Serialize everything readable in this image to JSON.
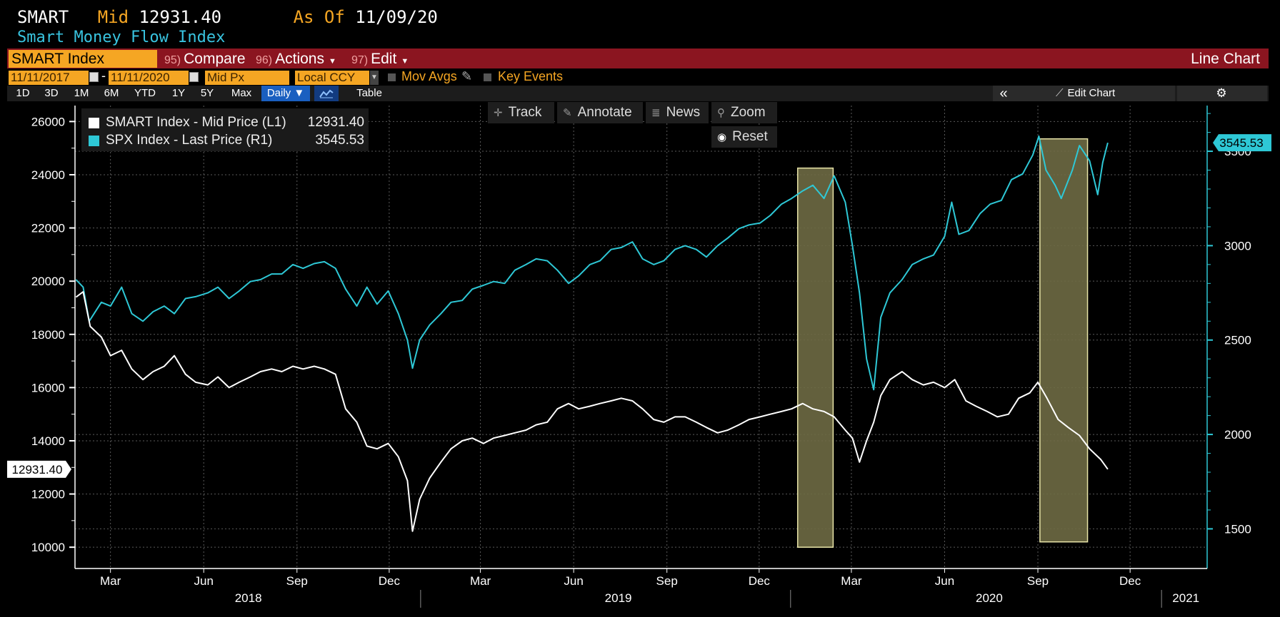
{
  "header": {
    "ticker": "SMART",
    "mid_label": "Mid",
    "mid_value": "12931.40",
    "asof_label": "As Of",
    "asof_value": "11/09/20",
    "subtitle": "Smart Money Flow Index"
  },
  "toolbar": {
    "security": "SMART Index",
    "compare": {
      "num": "95)",
      "label": "Compare"
    },
    "actions": {
      "num": "96)",
      "label": "Actions"
    },
    "edit": {
      "num": "97)",
      "label": "Edit"
    },
    "view": "Line Chart"
  },
  "options": {
    "start_date": "11/11/2017",
    "end_date": "11/11/2020",
    "price_field": "Mid Px",
    "currency": "Local CCY",
    "mov_avgs": "Mov Avgs",
    "key_events": "Key Events"
  },
  "periods": [
    "1D",
    "3D",
    "1M",
    "6M",
    "YTD",
    "1Y",
    "5Y",
    "Max"
  ],
  "frequency": "Daily ▼",
  "table_label": "Table",
  "collapse_icon": "«",
  "edit_chart_label": "Edit Chart",
  "tools": {
    "track": "Track",
    "annotate": "Annotate",
    "news": "News",
    "zoom": "Zoom",
    "reset": "Reset"
  },
  "colors": {
    "smart": "#ffffff",
    "spx": "#2ec8d6",
    "highlight": "#6e6a44",
    "highlight_border": "#e8e4a8",
    "toolbar_red": "#8b1520",
    "field_orange": "#f5a623"
  },
  "chart_data": {
    "type": "line",
    "legend_position": "top-left",
    "grid": true,
    "x_range": [
      "2018-01-25",
      "2021-02-15"
    ],
    "x_month_ticks": [
      "Mar",
      "Jun",
      "Sep",
      "Dec",
      "Mar",
      "Jun",
      "Sep",
      "Dec",
      "Mar",
      "Jun",
      "Sep",
      "Dec"
    ],
    "x_tick_dates": [
      "2018-03-01",
      "2018-06-01",
      "2018-09-01",
      "2018-12-01",
      "2019-03-01",
      "2019-06-01",
      "2019-09-01",
      "2019-12-01",
      "2020-03-01",
      "2020-06-01",
      "2020-09-01",
      "2020-12-01"
    ],
    "x_year_labels": [
      "2018",
      "2019",
      "2020",
      "2021"
    ],
    "x_year_label_dates": [
      "2018-07-15",
      "2019-07-15",
      "2020-07-15",
      "2021-01-25"
    ],
    "x_year_separator_dates": [
      "2019-01-01",
      "2020-01-01",
      "2021-01-01"
    ],
    "y_left": {
      "min": 9200,
      "max": 26600,
      "ticks": [
        10000,
        12000,
        14000,
        16000,
        18000,
        20000,
        22000,
        24000,
        26000
      ]
    },
    "y_right": {
      "min": 1290,
      "max": 3742,
      "ticks": [
        1500,
        2000,
        2500,
        3000,
        3500
      ]
    },
    "left_last_label": "12931.40",
    "right_last_label": "3545.53",
    "highlights": [
      {
        "start": "2020-01-08",
        "end": "2020-02-12",
        "low": 10000,
        "high": 24250
      },
      {
        "start": "2020-09-03",
        "end": "2020-10-20",
        "low": 10200,
        "high": 25350
      }
    ],
    "series": [
      {
        "name": "SMART Index - Mid Price (L1)",
        "last": "12931.40",
        "axis": "left",
        "points": [
          [
            "2018-01-26",
            19400
          ],
          [
            "2018-02-02",
            19600
          ],
          [
            "2018-02-09",
            18300
          ],
          [
            "2018-02-20",
            17900
          ],
          [
            "2018-03-01",
            17200
          ],
          [
            "2018-03-12",
            17400
          ],
          [
            "2018-03-22",
            16700
          ],
          [
            "2018-04-02",
            16300
          ],
          [
            "2018-04-12",
            16600
          ],
          [
            "2018-04-23",
            16800
          ],
          [
            "2018-05-03",
            17200
          ],
          [
            "2018-05-14",
            16500
          ],
          [
            "2018-05-24",
            16200
          ],
          [
            "2018-06-05",
            16100
          ],
          [
            "2018-06-15",
            16400
          ],
          [
            "2018-06-26",
            16000
          ],
          [
            "2018-07-06",
            16200
          ],
          [
            "2018-07-17",
            16400
          ],
          [
            "2018-07-27",
            16600
          ],
          [
            "2018-08-07",
            16700
          ],
          [
            "2018-08-17",
            16600
          ],
          [
            "2018-08-28",
            16800
          ],
          [
            "2018-09-07",
            16700
          ],
          [
            "2018-09-18",
            16800
          ],
          [
            "2018-09-28",
            16700
          ],
          [
            "2018-10-09",
            16500
          ],
          [
            "2018-10-19",
            15200
          ],
          [
            "2018-10-30",
            14700
          ],
          [
            "2018-11-09",
            13800
          ],
          [
            "2018-11-19",
            13700
          ],
          [
            "2018-11-30",
            13900
          ],
          [
            "2018-12-10",
            13400
          ],
          [
            "2018-12-19",
            12500
          ],
          [
            "2018-12-24",
            10600
          ],
          [
            "2018-12-31",
            11800
          ],
          [
            "2019-01-10",
            12600
          ],
          [
            "2019-01-21",
            13200
          ],
          [
            "2019-01-31",
            13700
          ],
          [
            "2019-02-11",
            14000
          ],
          [
            "2019-02-21",
            14100
          ],
          [
            "2019-03-04",
            13900
          ],
          [
            "2019-03-14",
            14100
          ],
          [
            "2019-03-25",
            14200
          ],
          [
            "2019-04-04",
            14300
          ],
          [
            "2019-04-15",
            14400
          ],
          [
            "2019-04-25",
            14600
          ],
          [
            "2019-05-06",
            14700
          ],
          [
            "2019-05-16",
            15200
          ],
          [
            "2019-05-27",
            15400
          ],
          [
            "2019-06-06",
            15200
          ],
          [
            "2019-06-17",
            15300
          ],
          [
            "2019-06-27",
            15400
          ],
          [
            "2019-07-08",
            15500
          ],
          [
            "2019-07-18",
            15600
          ],
          [
            "2019-07-29",
            15500
          ],
          [
            "2019-08-08",
            15200
          ],
          [
            "2019-08-19",
            14800
          ],
          [
            "2019-08-29",
            14700
          ],
          [
            "2019-09-09",
            14900
          ],
          [
            "2019-09-19",
            14900
          ],
          [
            "2019-09-30",
            14700
          ],
          [
            "2019-10-10",
            14500
          ],
          [
            "2019-10-21",
            14300
          ],
          [
            "2019-10-31",
            14400
          ],
          [
            "2019-11-11",
            14600
          ],
          [
            "2019-11-21",
            14800
          ],
          [
            "2019-12-02",
            14900
          ],
          [
            "2019-12-12",
            15000
          ],
          [
            "2019-12-23",
            15100
          ],
          [
            "2020-01-02",
            15200
          ],
          [
            "2020-01-13",
            15400
          ],
          [
            "2020-01-23",
            15200
          ],
          [
            "2020-02-03",
            15100
          ],
          [
            "2020-02-13",
            14900
          ],
          [
            "2020-02-24",
            14400
          ],
          [
            "2020-03-02",
            14100
          ],
          [
            "2020-03-09",
            13200
          ],
          [
            "2020-03-16",
            14000
          ],
          [
            "2020-03-23",
            14700
          ],
          [
            "2020-03-30",
            15700
          ],
          [
            "2020-04-08",
            16300
          ],
          [
            "2020-04-20",
            16600
          ],
          [
            "2020-04-30",
            16300
          ],
          [
            "2020-05-11",
            16100
          ],
          [
            "2020-05-21",
            16200
          ],
          [
            "2020-06-01",
            16000
          ],
          [
            "2020-06-11",
            16300
          ],
          [
            "2020-06-22",
            15500
          ],
          [
            "2020-07-02",
            15300
          ],
          [
            "2020-07-13",
            15100
          ],
          [
            "2020-07-23",
            14900
          ],
          [
            "2020-08-03",
            15000
          ],
          [
            "2020-08-13",
            15600
          ],
          [
            "2020-08-24",
            15800
          ],
          [
            "2020-09-01",
            16200
          ],
          [
            "2020-09-10",
            15600
          ],
          [
            "2020-09-21",
            14800
          ],
          [
            "2020-10-01",
            14500
          ],
          [
            "2020-10-12",
            14200
          ],
          [
            "2020-10-22",
            13700
          ],
          [
            "2020-11-02",
            13300
          ],
          [
            "2020-11-09",
            12931
          ]
        ]
      },
      {
        "name": "SPX Index - Last Price (R1)",
        "last": "3545.53",
        "axis": "right",
        "points": [
          [
            "2018-01-26",
            2820
          ],
          [
            "2018-02-02",
            2780
          ],
          [
            "2018-02-08",
            2600
          ],
          [
            "2018-02-20",
            2700
          ],
          [
            "2018-03-01",
            2680
          ],
          [
            "2018-03-12",
            2780
          ],
          [
            "2018-03-22",
            2640
          ],
          [
            "2018-04-02",
            2600
          ],
          [
            "2018-04-12",
            2650
          ],
          [
            "2018-04-23",
            2680
          ],
          [
            "2018-05-03",
            2640
          ],
          [
            "2018-05-14",
            2720
          ],
          [
            "2018-05-24",
            2730
          ],
          [
            "2018-06-05",
            2750
          ],
          [
            "2018-06-15",
            2780
          ],
          [
            "2018-06-26",
            2720
          ],
          [
            "2018-07-06",
            2760
          ],
          [
            "2018-07-17",
            2810
          ],
          [
            "2018-07-27",
            2820
          ],
          [
            "2018-08-07",
            2850
          ],
          [
            "2018-08-17",
            2850
          ],
          [
            "2018-08-28",
            2900
          ],
          [
            "2018-09-07",
            2880
          ],
          [
            "2018-09-18",
            2905
          ],
          [
            "2018-09-28",
            2915
          ],
          [
            "2018-10-09",
            2880
          ],
          [
            "2018-10-19",
            2770
          ],
          [
            "2018-10-30",
            2680
          ],
          [
            "2018-11-09",
            2780
          ],
          [
            "2018-11-19",
            2690
          ],
          [
            "2018-11-30",
            2760
          ],
          [
            "2018-12-10",
            2640
          ],
          [
            "2018-12-19",
            2500
          ],
          [
            "2018-12-24",
            2351
          ],
          [
            "2018-12-31",
            2500
          ],
          [
            "2019-01-10",
            2580
          ],
          [
            "2019-01-21",
            2640
          ],
          [
            "2019-01-31",
            2700
          ],
          [
            "2019-02-11",
            2710
          ],
          [
            "2019-02-21",
            2770
          ],
          [
            "2019-03-04",
            2790
          ],
          [
            "2019-03-14",
            2810
          ],
          [
            "2019-03-25",
            2800
          ],
          [
            "2019-04-04",
            2870
          ],
          [
            "2019-04-15",
            2900
          ],
          [
            "2019-04-25",
            2930
          ],
          [
            "2019-05-06",
            2920
          ],
          [
            "2019-05-16",
            2870
          ],
          [
            "2019-05-27",
            2800
          ],
          [
            "2019-06-06",
            2840
          ],
          [
            "2019-06-17",
            2900
          ],
          [
            "2019-06-27",
            2920
          ],
          [
            "2019-07-08",
            2980
          ],
          [
            "2019-07-18",
            2990
          ],
          [
            "2019-07-29",
            3020
          ],
          [
            "2019-08-08",
            2930
          ],
          [
            "2019-08-19",
            2900
          ],
          [
            "2019-08-29",
            2920
          ],
          [
            "2019-09-09",
            2980
          ],
          [
            "2019-09-19",
            3000
          ],
          [
            "2019-09-30",
            2980
          ],
          [
            "2019-10-10",
            2940
          ],
          [
            "2019-10-21",
            3000
          ],
          [
            "2019-10-31",
            3040
          ],
          [
            "2019-11-11",
            3090
          ],
          [
            "2019-11-21",
            3110
          ],
          [
            "2019-12-02",
            3120
          ],
          [
            "2019-12-12",
            3160
          ],
          [
            "2019-12-23",
            3220
          ],
          [
            "2020-01-02",
            3250
          ],
          [
            "2020-01-13",
            3290
          ],
          [
            "2020-01-23",
            3320
          ],
          [
            "2020-02-03",
            3250
          ],
          [
            "2020-02-13",
            3370
          ],
          [
            "2020-02-24",
            3230
          ],
          [
            "2020-03-02",
            3000
          ],
          [
            "2020-03-09",
            2750
          ],
          [
            "2020-03-16",
            2400
          ],
          [
            "2020-03-23",
            2237
          ],
          [
            "2020-03-30",
            2620
          ],
          [
            "2020-04-08",
            2750
          ],
          [
            "2020-04-20",
            2820
          ],
          [
            "2020-04-30",
            2900
          ],
          [
            "2020-05-11",
            2930
          ],
          [
            "2020-05-21",
            2950
          ],
          [
            "2020-06-01",
            3050
          ],
          [
            "2020-06-08",
            3230
          ],
          [
            "2020-06-15",
            3060
          ],
          [
            "2020-06-25",
            3080
          ],
          [
            "2020-07-06",
            3170
          ],
          [
            "2020-07-16",
            3220
          ],
          [
            "2020-07-27",
            3240
          ],
          [
            "2020-08-06",
            3350
          ],
          [
            "2020-08-17",
            3380
          ],
          [
            "2020-08-27",
            3480
          ],
          [
            "2020-09-02",
            3580
          ],
          [
            "2020-09-09",
            3400
          ],
          [
            "2020-09-18",
            3320
          ],
          [
            "2020-09-24",
            3250
          ],
          [
            "2020-10-05",
            3400
          ],
          [
            "2020-10-12",
            3530
          ],
          [
            "2020-10-22",
            3450
          ],
          [
            "2020-10-30",
            3270
          ],
          [
            "2020-11-04",
            3440
          ],
          [
            "2020-11-09",
            3545
          ]
        ]
      }
    ]
  }
}
